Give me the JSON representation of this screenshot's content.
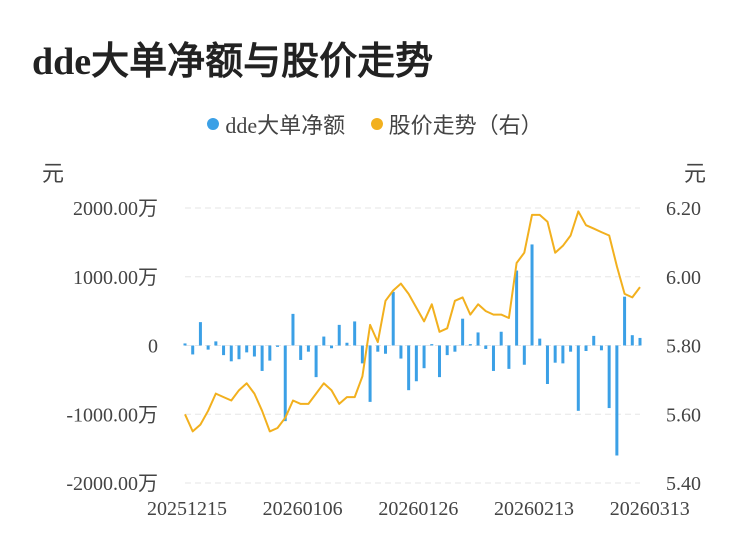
{
  "title": "dde大单净额与股价走势",
  "legend": [
    {
      "label": "dde大单净额",
      "color": "#3ba0e6"
    },
    {
      "label": "股价走势（右）",
      "color": "#f2b01e"
    }
  ],
  "left_unit": "元",
  "right_unit": "元",
  "chart_data": {
    "type": "bar+line",
    "title": "dde大单净额与股价走势",
    "left_axis": {
      "unit": "元",
      "ylim": [
        -2000,
        2000
      ],
      "ticks": [
        2000,
        1000,
        0,
        -1000,
        -2000
      ],
      "tick_labels": [
        "2000.00万",
        "1000.00万",
        "0",
        "-1000.00万",
        "-2000.00万"
      ]
    },
    "right_axis": {
      "unit": "元",
      "ylim": [
        5.4,
        6.2
      ],
      "ticks": [
        6.2,
        6.0,
        5.8,
        5.6,
        5.4
      ],
      "tick_labels": [
        "6.20",
        "6.00",
        "5.80",
        "5.60",
        "5.40"
      ]
    },
    "x_tick_labels": [
      "20251215",
      "20260106",
      "20260126",
      "20260213",
      "20260313"
    ],
    "x_tick_indices": [
      0,
      15,
      30,
      45,
      60
    ],
    "grid": true,
    "series": [
      {
        "name": "dde大单净额",
        "type": "bar",
        "color": "#3ba0e6",
        "values": [
          30,
          -130,
          340,
          -60,
          60,
          -140,
          -230,
          -200,
          -100,
          -160,
          -370,
          -220,
          -20,
          -1100,
          460,
          -210,
          -90,
          -460,
          130,
          -40,
          300,
          40,
          350,
          -260,
          -820,
          -90,
          -120,
          780,
          -190,
          -650,
          -520,
          -330,
          20,
          -460,
          -140,
          -90,
          390,
          20,
          190,
          -50,
          -370,
          200,
          -340,
          1090,
          -280,
          1470,
          100,
          -560,
          -250,
          -260,
          -90,
          -950,
          -80,
          140,
          -70,
          -910,
          -1600,
          710,
          150,
          110
        ],
        "ylabel_axis": "left"
      },
      {
        "name": "股价走势（右）",
        "type": "line",
        "color": "#f2b01e",
        "values": [
          5.6,
          5.55,
          5.57,
          5.61,
          5.66,
          5.65,
          5.64,
          5.67,
          5.69,
          5.66,
          5.61,
          5.55,
          5.56,
          5.59,
          5.64,
          5.63,
          5.63,
          5.66,
          5.69,
          5.67,
          5.63,
          5.65,
          5.65,
          5.71,
          5.86,
          5.81,
          5.93,
          5.96,
          5.98,
          5.95,
          5.91,
          5.87,
          5.92,
          5.84,
          5.85,
          5.93,
          5.94,
          5.89,
          5.92,
          5.9,
          5.89,
          5.89,
          5.88,
          6.04,
          6.07,
          6.18,
          6.18,
          6.16,
          6.07,
          6.09,
          6.12,
          6.19,
          6.15,
          6.14,
          6.13,
          6.12,
          6.03,
          5.95,
          5.94,
          5.97
        ],
        "ylabel_axis": "right"
      }
    ]
  }
}
